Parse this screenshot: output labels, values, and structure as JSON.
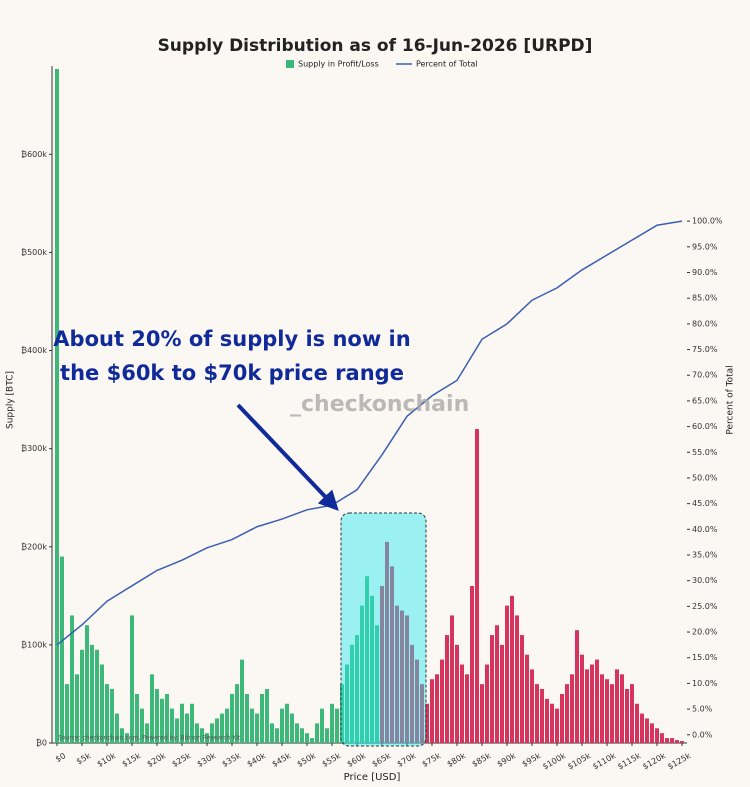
{
  "chart_data": {
    "type": "bar",
    "title": "Supply Distribution as of 16-Jun-2026 [URPD]",
    "xlabel": "Price [USD]",
    "ylabel": "Supply [BTC]",
    "y2label": "Percent of Total",
    "annotation": [
      "About 20% of supply is now in",
      "the $60k to $70k price range"
    ],
    "watermark": "_checkonchain",
    "source": "Source: checkonchain.com, Powered by: Bitcoin Research Kit",
    "xlim": [
      -1000,
      126000
    ],
    "ylim": [
      0,
      690000
    ],
    "y2lim": [
      -1.6,
      130.2
    ],
    "xticks": [
      {
        "value": 0,
        "label": "$0"
      },
      {
        "value": 5000,
        "label": "$5k"
      },
      {
        "value": 10000,
        "label": "$10k"
      },
      {
        "value": 15000,
        "label": "$15k"
      },
      {
        "value": 20000,
        "label": "$20k"
      },
      {
        "value": 25000,
        "label": "$25k"
      },
      {
        "value": 30000,
        "label": "$30k"
      },
      {
        "value": 35000,
        "label": "$35k"
      },
      {
        "value": 40000,
        "label": "$40k"
      },
      {
        "value": 45000,
        "label": "$45k"
      },
      {
        "value": 50000,
        "label": "$50k"
      },
      {
        "value": 55000,
        "label": "$55k"
      },
      {
        "value": 60000,
        "label": "$60k"
      },
      {
        "value": 65000,
        "label": "$65k"
      },
      {
        "value": 70000,
        "label": "$70k"
      },
      {
        "value": 75000,
        "label": "$75k"
      },
      {
        "value": 80000,
        "label": "$80k"
      },
      {
        "value": 85000,
        "label": "$85k"
      },
      {
        "value": 90000,
        "label": "$90k"
      },
      {
        "value": 95000,
        "label": "$95k"
      },
      {
        "value": 100000,
        "label": "$100k"
      },
      {
        "value": 105000,
        "label": "$105k"
      },
      {
        "value": 110000,
        "label": "$110k"
      },
      {
        "value": 115000,
        "label": "$115k"
      },
      {
        "value": 120000,
        "label": "$120k"
      },
      {
        "value": 125000,
        "label": "$125k"
      }
    ],
    "yticks": [
      {
        "value": 0,
        "label": "₿0"
      },
      {
        "value": 100000,
        "label": "₿100k"
      },
      {
        "value": 200000,
        "label": "₿200k"
      },
      {
        "value": 300000,
        "label": "₿300k"
      },
      {
        "value": 400000,
        "label": "₿400k"
      },
      {
        "value": 500000,
        "label": "₿500k"
      },
      {
        "value": 600000,
        "label": "₿600k"
      }
    ],
    "y2ticks": [
      {
        "value": 0,
        "label": "0.0%"
      },
      {
        "value": 5,
        "label": "5.0%"
      },
      {
        "value": 10,
        "label": "10.0%"
      },
      {
        "value": 15,
        "label": "15.0%"
      },
      {
        "value": 20,
        "label": "20.0%"
      },
      {
        "value": 25,
        "label": "25.0%"
      },
      {
        "value": 30,
        "label": "30.0%"
      },
      {
        "value": 35,
        "label": "35.0%"
      },
      {
        "value": 40,
        "label": "40.0%"
      },
      {
        "value": 45,
        "label": "45.0%"
      },
      {
        "value": 50,
        "label": "50.0%"
      },
      {
        "value": 55,
        "label": "55.0%"
      },
      {
        "value": 60,
        "label": "60.0%"
      },
      {
        "value": 65,
        "label": "65.0%"
      },
      {
        "value": 70,
        "label": "70.0%"
      },
      {
        "value": 75,
        "label": "75.0%"
      },
      {
        "value": 80,
        "label": "80.0%"
      },
      {
        "value": 85,
        "label": "85.0%"
      },
      {
        "value": 90,
        "label": "90.0%"
      },
      {
        "value": 95,
        "label": "95.0%"
      },
      {
        "value": 100,
        "label": "100.0%"
      }
    ],
    "series": [
      {
        "name": "Supply in Profit/Loss",
        "color": "#3cb878",
        "x": [
          0,
          1000,
          2000,
          3000,
          4000,
          5000,
          6000,
          7000,
          8000,
          9000,
          10000,
          11000,
          12000,
          13000,
          14000,
          15000,
          16000,
          17000,
          18000,
          19000,
          20000,
          21000,
          22000,
          23000,
          24000,
          25000,
          26000,
          27000,
          28000,
          29000,
          30000,
          31000,
          32000,
          33000,
          34000,
          35000,
          36000,
          37000,
          38000,
          39000,
          40000,
          41000,
          42000,
          43000,
          44000,
          45000,
          46000,
          47000,
          48000,
          49000,
          50000,
          51000,
          52000,
          53000,
          54000,
          55000,
          56000,
          57000,
          58000,
          59000,
          60000,
          61000,
          62000,
          63000,
          64000,
          65000,
          66000,
          67000,
          68000,
          69000,
          70000,
          71000,
          72000,
          73000,
          74000,
          75000,
          76000,
          77000,
          78000,
          79000,
          80000,
          81000,
          82000,
          83000,
          84000,
          85000,
          86000,
          87000,
          88000,
          89000,
          90000,
          91000,
          92000,
          93000,
          94000,
          95000,
          96000,
          97000,
          98000,
          99000,
          100000,
          101000,
          102000,
          103000,
          104000,
          105000,
          106000,
          107000,
          108000,
          109000,
          110000,
          111000,
          112000,
          113000,
          114000,
          115000,
          116000,
          117000,
          118000,
          119000,
          120000,
          121000,
          122000,
          123000,
          124000,
          125000
        ],
        "values": [
          687000,
          190000,
          60000,
          130000,
          70000,
          95000,
          120000,
          100000,
          95000,
          80000,
          60000,
          55000,
          30000,
          15000,
          10000,
          130000,
          50000,
          35000,
          20000,
          70000,
          55000,
          45000,
          50000,
          35000,
          25000,
          40000,
          30000,
          40000,
          20000,
          15000,
          10000,
          20000,
          25000,
          30000,
          35000,
          50000,
          60000,
          85000,
          50000,
          35000,
          30000,
          50000,
          55000,
          20000,
          15000,
          35000,
          40000,
          30000,
          20000,
          15000,
          10000,
          5000,
          20000,
          35000,
          15000,
          40000,
          35000,
          60000,
          80000,
          100000,
          110000,
          140000,
          170000,
          150000,
          120000,
          160000,
          205000,
          180000,
          140000,
          135000,
          130000,
          100000,
          85000,
          60000,
          40000,
          65000,
          70000,
          85000,
          110000,
          130000,
          100000,
          80000,
          70000,
          160000,
          320000,
          60000,
          80000,
          110000,
          120000,
          100000,
          140000,
          150000,
          130000,
          110000,
          90000,
          75000,
          60000,
          55000,
          45000,
          40000,
          35000,
          50000,
          60000,
          70000,
          115000,
          90000,
          75000,
          80000,
          85000,
          70000,
          65000,
          60000,
          75000,
          70000,
          55000,
          60000,
          40000,
          30000,
          25000,
          20000,
          15000,
          10000,
          5000,
          5000,
          3000,
          2000
        ],
        "colors": [
          "#3cb878",
          "#3cb878",
          "#3cb878",
          "#3cb878",
          "#3cb878",
          "#3cb878",
          "#3cb878",
          "#3cb878",
          "#3cb878",
          "#3cb878",
          "#3cb878",
          "#3cb878",
          "#3cb878",
          "#3cb878",
          "#3cb878",
          "#3cb878",
          "#3cb878",
          "#3cb878",
          "#3cb878",
          "#3cb878",
          "#3cb878",
          "#3cb878",
          "#3cb878",
          "#3cb878",
          "#3cb878",
          "#3cb878",
          "#3cb878",
          "#3cb878",
          "#3cb878",
          "#3cb878",
          "#3cb878",
          "#3cb878",
          "#3cb878",
          "#3cb878",
          "#3cb878",
          "#3cb878",
          "#3cb878",
          "#3cb878",
          "#3cb878",
          "#3cb878",
          "#3cb878",
          "#3cb878",
          "#3cb878",
          "#3cb878",
          "#3cb878",
          "#3cb878",
          "#3cb878",
          "#3cb878",
          "#3cb878",
          "#3cb878",
          "#3cb878",
          "#3cb878",
          "#3cb878",
          "#3cb878",
          "#3cb878",
          "#3cb878",
          "#3cb878",
          "#3cb878",
          "#3cb878",
          "#3cb878",
          "#3cb878",
          "#3cb878",
          "#3cb878",
          "#3cb878",
          "#3cb878",
          "#d6335e",
          "#d6335e",
          "#d6335e",
          "#d6335e",
          "#d6335e",
          "#d6335e",
          "#d6335e",
          "#d6335e",
          "#d6335e",
          "#d6335e",
          "#d6335e",
          "#d6335e",
          "#d6335e",
          "#d6335e",
          "#d6335e",
          "#d6335e",
          "#d6335e",
          "#d6335e",
          "#d6335e",
          "#d6335e",
          "#d6335e",
          "#d6335e",
          "#d6335e",
          "#d6335e",
          "#d6335e",
          "#d6335e",
          "#d6335e",
          "#d6335e",
          "#d6335e",
          "#d6335e",
          "#d6335e",
          "#d6335e",
          "#d6335e",
          "#d6335e",
          "#d6335e",
          "#d6335e",
          "#d6335e",
          "#d6335e",
          "#d6335e",
          "#d6335e",
          "#d6335e",
          "#d6335e",
          "#d6335e",
          "#d6335e",
          "#d6335e",
          "#d6335e",
          "#d6335e",
          "#d6335e",
          "#d6335e",
          "#d6335e",
          "#d6335e",
          "#d6335e",
          "#d6335e",
          "#d6335e",
          "#d6335e",
          "#d6335e",
          "#d6335e",
          "#d6335e",
          "#d6335e",
          "#d6335e",
          "#d6335e"
        ]
      },
      {
        "name": "Percent of Total",
        "type": "line",
        "axis": "y2",
        "color": "#3a5fb0",
        "x": [
          0,
          5000,
          10000,
          15000,
          20000,
          25000,
          30000,
          35000,
          40000,
          45000,
          50000,
          55000,
          60000,
          65000,
          70000,
          75000,
          80000,
          85000,
          90000,
          95000,
          100000,
          105000,
          110000,
          115000,
          120000,
          125000
        ],
        "values": [
          17.5,
          21.4,
          26,
          29,
          32,
          34,
          36.4,
          38,
          40.5,
          42,
          43.8,
          44.7,
          47.7,
          54.5,
          62,
          66,
          69,
          77,
          80,
          84.6,
          87,
          90.5,
          93.4,
          96.3,
          99.2,
          100
        ]
      }
    ]
  }
}
